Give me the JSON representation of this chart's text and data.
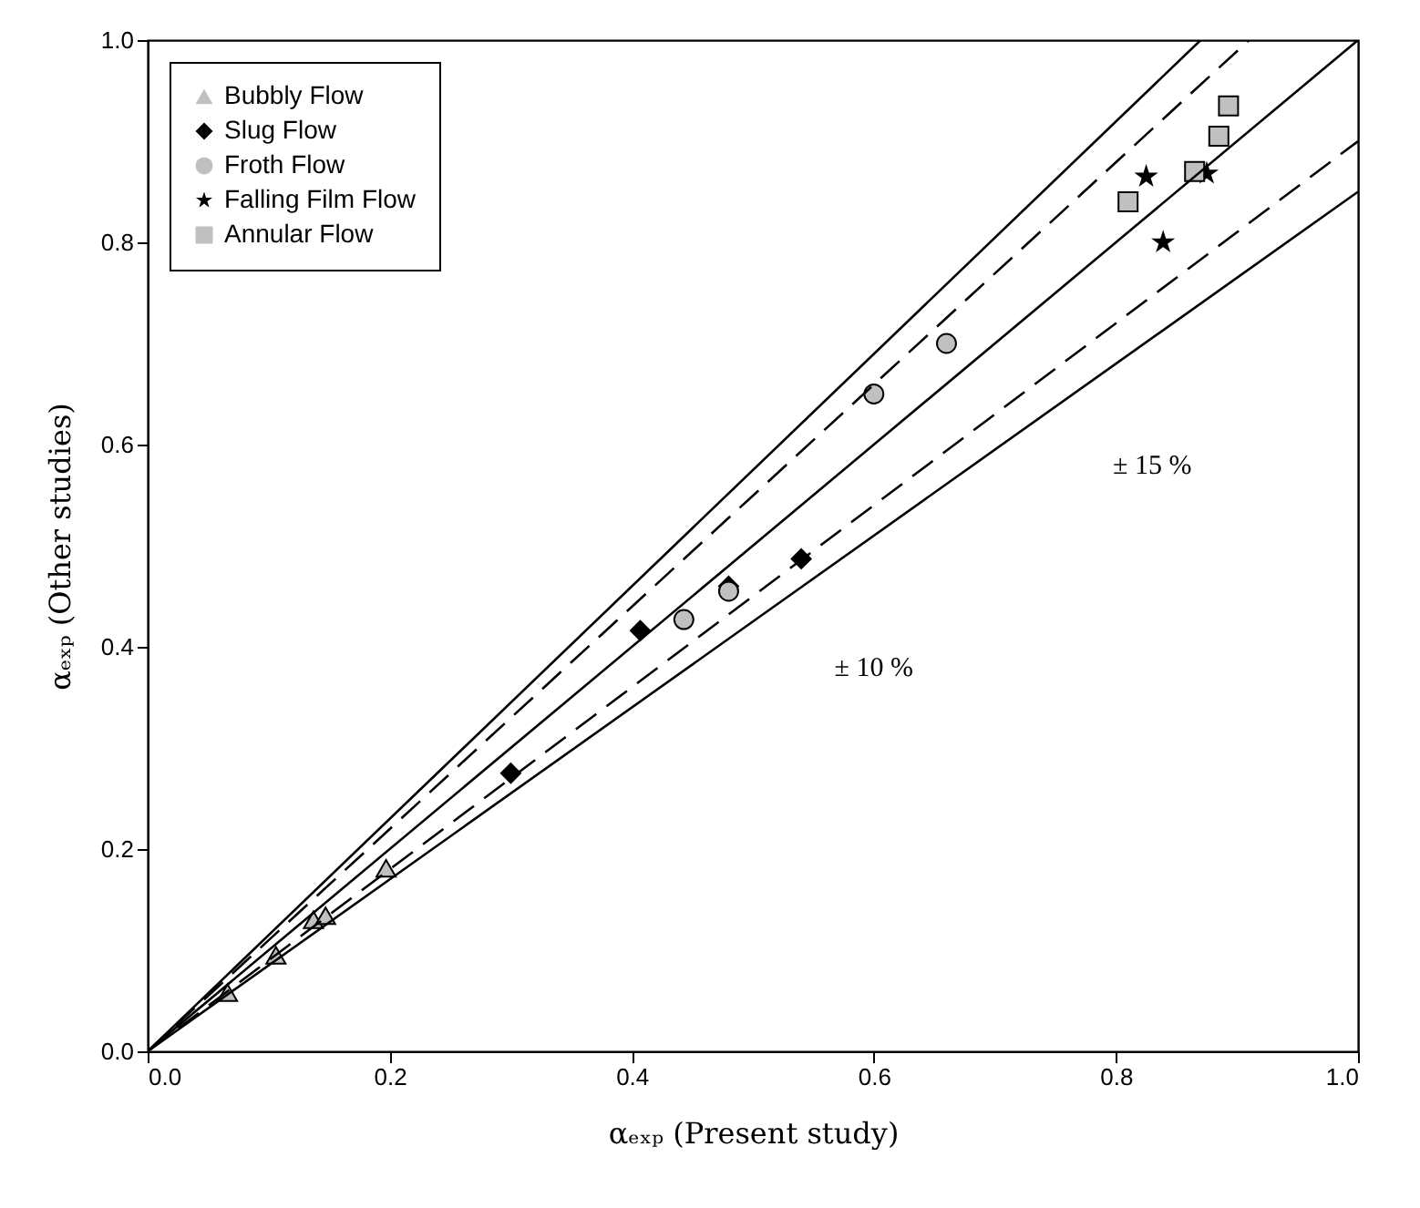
{
  "chart_data": {
    "type": "scatter",
    "xlabel": "αₑₓₚ (Present study)",
    "ylabel": "αₑₓₚ (Other studies)",
    "xlim": [
      0,
      1
    ],
    "ylim": [
      0,
      1
    ],
    "xticks": [
      {
        "value": 0,
        "label": "0.0"
      },
      0.2,
      0.4,
      0.6,
      0.8,
      {
        "value": 1,
        "label": "1.0"
      }
    ],
    "yticks": [
      {
        "value": 0,
        "label": "0.0"
      },
      0.2,
      0.4,
      0.6,
      0.8,
      {
        "value": 1,
        "label": "1.0"
      }
    ],
    "grid": false,
    "legend": "top left",
    "annotations": [
      "± 10 %",
      "± 15 %"
    ],
    "series": [
      {
        "name": "Bubbly Flow",
        "type": "scatter",
        "marker": "triangle",
        "color": "#c0c0c0",
        "x": [
          0.066,
          0.106,
          0.137,
          0.147,
          0.197
        ],
        "values": [
          0.058,
          0.095,
          0.13,
          0.134,
          0.181
        ]
      },
      {
        "name": "Slug Flow",
        "type": "scatter",
        "marker": "diamond",
        "color": "#000000",
        "x": [
          0.3,
          0.407,
          0.48,
          0.54
        ],
        "values": [
          0.275,
          0.416,
          0.46,
          0.487
        ]
      },
      {
        "name": "Froth Flow",
        "type": "scatter",
        "marker": "circle",
        "color": "#c0c0c0",
        "x": [
          0.443,
          0.48,
          0.6,
          0.66
        ],
        "values": [
          0.427,
          0.455,
          0.65,
          0.7
        ]
      },
      {
        "name": "Falling Film Flow",
        "type": "scatter",
        "marker": "star",
        "color": "#000000",
        "x": [
          0.825,
          0.839,
          0.875
        ],
        "values": [
          0.865,
          0.8,
          0.868
        ]
      },
      {
        "name": "Annular Flow",
        "type": "scatter",
        "marker": "square",
        "color": "#c0c0c0",
        "x": [
          0.81,
          0.865,
          0.885,
          0.893
        ],
        "values": [
          0.84,
          0.87,
          0.905,
          0.935
        ]
      },
      {
        "type": "line",
        "color": "#000000",
        "line_style": "solid",
        "x": [
          0,
          1
        ],
        "values": [
          0,
          1
        ]
      },
      {
        "type": "line",
        "color": "#000000",
        "line_style": "dashed",
        "x": [
          0,
          0.91
        ],
        "values": [
          0,
          1
        ]
      },
      {
        "type": "line",
        "color": "#000000",
        "line_style": "dashed",
        "x": [
          0,
          1
        ],
        "values": [
          0,
          0.9
        ]
      },
      {
        "type": "line",
        "color": "#000000",
        "line_style": "solid",
        "x": [
          0,
          0.87
        ],
        "values": [
          0,
          1
        ]
      },
      {
        "type": "line",
        "color": "#000000",
        "line_style": "solid",
        "x": [
          0,
          1
        ],
        "values": [
          0,
          0.85
        ]
      }
    ]
  }
}
